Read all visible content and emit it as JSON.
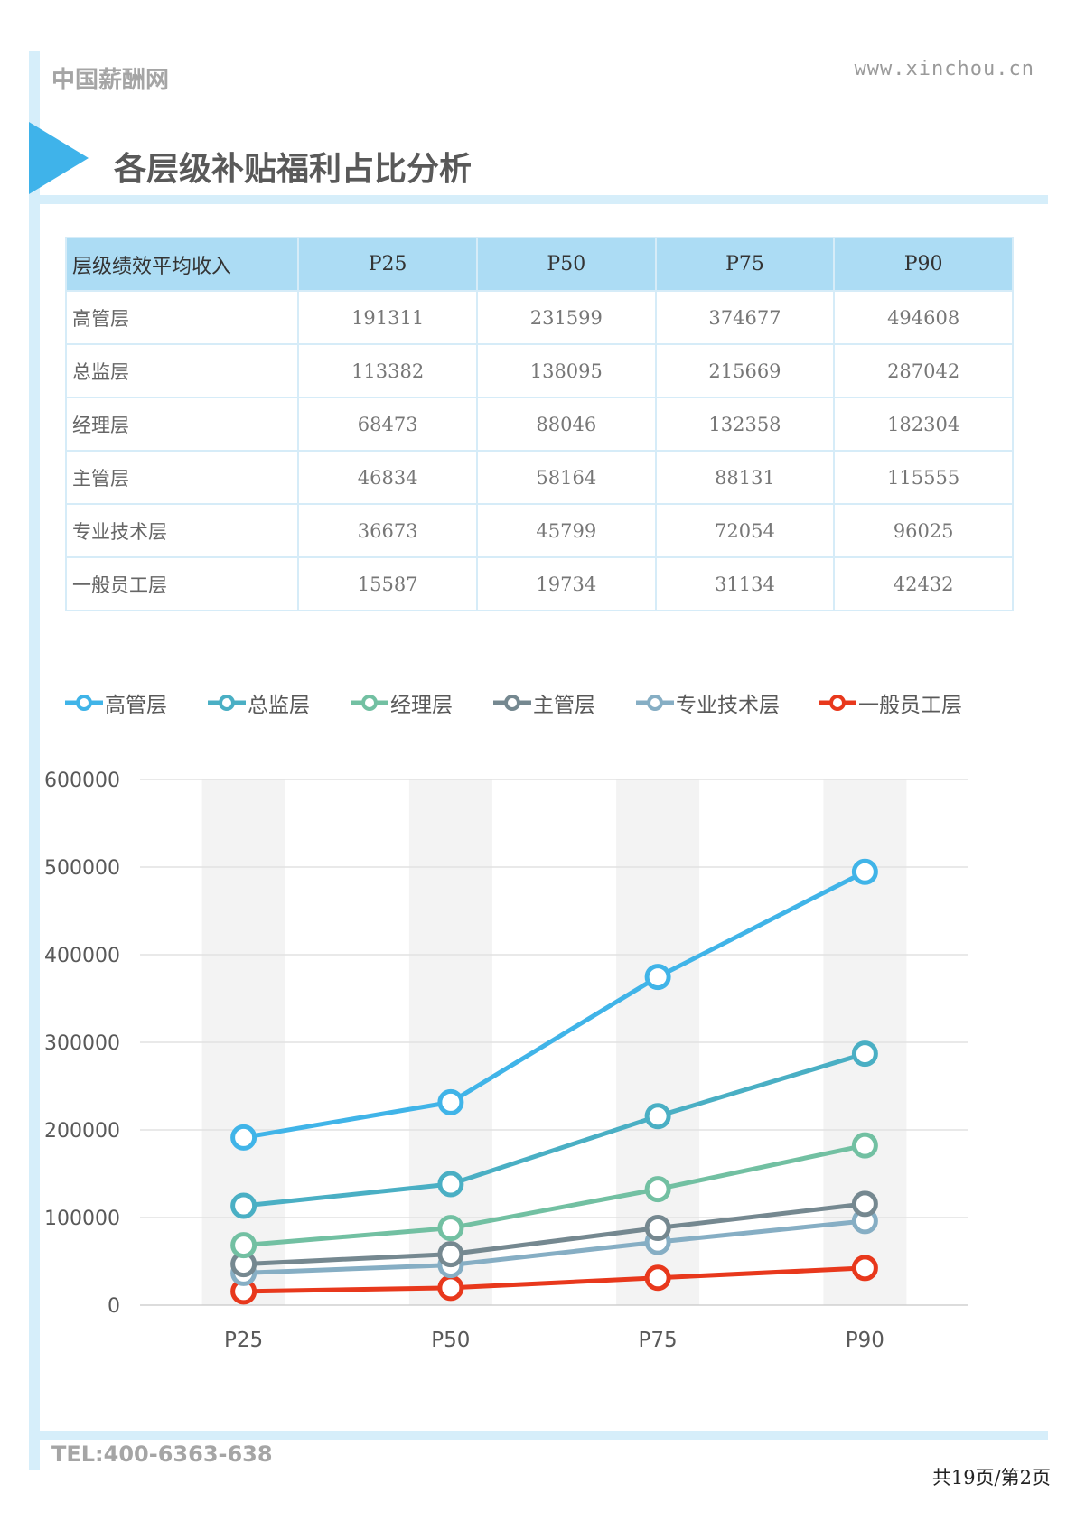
{
  "header": {
    "brand": "中国薪酬网",
    "url": "www.xinchou.cn"
  },
  "section": {
    "title": "各层级补贴福利占比分析"
  },
  "table": {
    "columns": [
      "层级绩效平均收入",
      "P25",
      "P50",
      "P75",
      "P90"
    ],
    "rows": [
      [
        "高管层",
        "191311",
        "231599",
        "374677",
        "494608"
      ],
      [
        "总监层",
        "113382",
        "138095",
        "215669",
        "287042"
      ],
      [
        "经理层",
        "68473",
        "88046",
        "132358",
        "182304"
      ],
      [
        "主管层",
        "46834",
        "58164",
        "88131",
        "115555"
      ],
      [
        "专业技术层",
        "36673",
        "45799",
        "72054",
        "96025"
      ],
      [
        "一般员工层",
        "15587",
        "19734",
        "31134",
        "42432"
      ]
    ]
  },
  "chart_data": {
    "type": "line",
    "categories": [
      "P25",
      "P50",
      "P75",
      "P90"
    ],
    "ylim": [
      0,
      600000
    ],
    "yticks": [
      "600000",
      "500000",
      "400000",
      "300000",
      "200000",
      "100000",
      "0"
    ],
    "legend_position": "top",
    "grid": true,
    "series": [
      {
        "name": "高管层",
        "color": "#40b4e8",
        "values": [
          191311,
          231599,
          374677,
          494608
        ]
      },
      {
        "name": "总监层",
        "color": "#4aafc4",
        "values": [
          113382,
          138095,
          215669,
          287042
        ]
      },
      {
        "name": "经理层",
        "color": "#72c0a2",
        "values": [
          68473,
          88046,
          132358,
          182304
        ]
      },
      {
        "name": "主管层",
        "color": "#758890",
        "values": [
          46834,
          58164,
          88131,
          115555
        ]
      },
      {
        "name": "专业技术层",
        "color": "#86aec4",
        "values": [
          36673,
          45799,
          72054,
          96025
        ]
      },
      {
        "name": "一般员工层",
        "color": "#e8381c",
        "values": [
          15587,
          19734,
          31134,
          42432
        ]
      }
    ]
  },
  "footer": {
    "tel": "TEL:400-6363-638",
    "page": "共19页/第2页"
  }
}
